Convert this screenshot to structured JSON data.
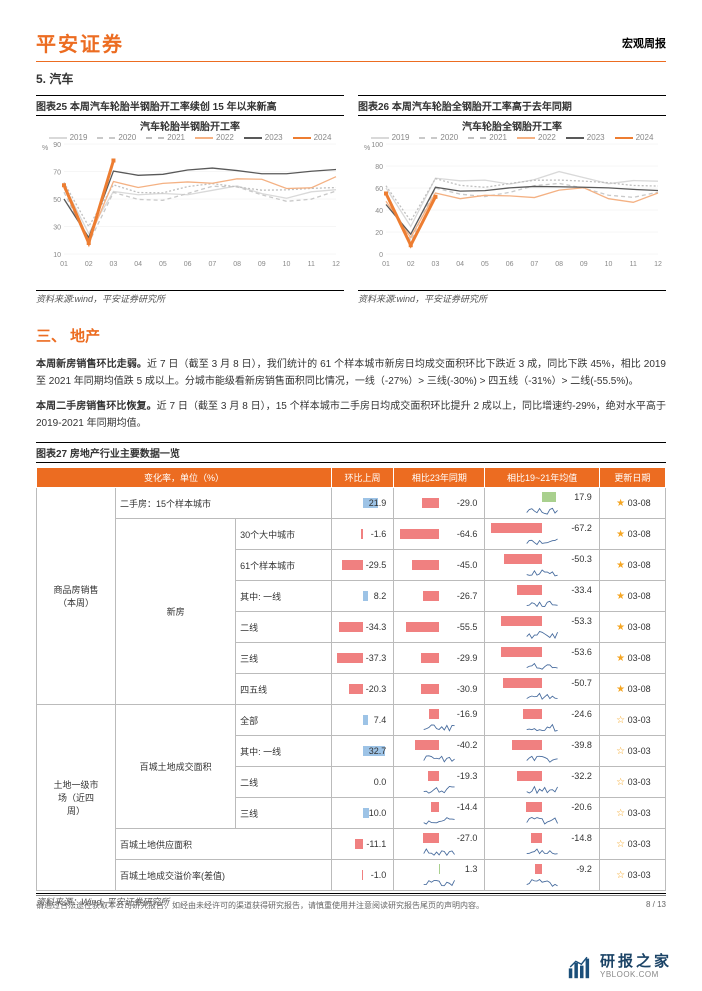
{
  "header": {
    "brand": "平安证券",
    "doc_type": "宏观周报"
  },
  "section5": {
    "title": "5. 汽车",
    "chart25": {
      "title": "图表25   本周汽车轮胎半钢胎开工率续创 15 年以来新高",
      "inner_title": "汽车轮胎半钢胎开工率",
      "y_unit": "%",
      "ylim": [
        10,
        90
      ],
      "yticks": [
        10,
        30,
        50,
        70,
        90
      ],
      "x_labels": [
        "01",
        "02",
        "03",
        "04",
        "05",
        "06",
        "07",
        "08",
        "09",
        "10",
        "11",
        "12"
      ],
      "series": [
        {
          "name": "2019",
          "color": "#d9d9d9",
          "dash": "0"
        },
        {
          "name": "2020",
          "color": "#c9c9c9",
          "dash": "4 3"
        },
        {
          "name": "2021",
          "color": "#bfbfbf",
          "dash": "2 2"
        },
        {
          "name": "2022",
          "color": "#f4b183",
          "dash": "0"
        },
        {
          "name": "2023",
          "color": "#595959",
          "dash": "0"
        },
        {
          "name": "2024",
          "color": "#ed7d31",
          "dash": "0",
          "width": 3,
          "marker": true
        }
      ],
      "source": "资料来源:wind，平安证券研究所"
    },
    "chart26": {
      "title": "图表26   本周汽车轮胎全钢胎开工率高于去年同期",
      "inner_title": "汽车轮胎全钢胎开工率",
      "y_unit": "%",
      "ylim": [
        0,
        100
      ],
      "yticks": [
        0,
        20,
        40,
        60,
        80,
        100
      ],
      "x_labels": [
        "01",
        "02",
        "03",
        "04",
        "05",
        "06",
        "07",
        "08",
        "09",
        "10",
        "11",
        "12"
      ],
      "series": [
        {
          "name": "2019",
          "color": "#d9d9d9",
          "dash": "0"
        },
        {
          "name": "2020",
          "color": "#c9c9c9",
          "dash": "4 3"
        },
        {
          "name": "2021",
          "color": "#bfbfbf",
          "dash": "2 2"
        },
        {
          "name": "2022",
          "color": "#f4b183",
          "dash": "0"
        },
        {
          "name": "2023",
          "color": "#595959",
          "dash": "0"
        },
        {
          "name": "2024",
          "color": "#ed7d31",
          "dash": "0",
          "width": 3,
          "marker": true
        }
      ],
      "source": "资料来源:wind，平安证券研究所"
    }
  },
  "section3": {
    "title": "三、 地产",
    "p1_bold": "本周新房销售环比走弱。",
    "p1": "近 7 日（截至 3 月 8 日），我们统计的 61 个样本城市新房日均成交面积环比下跌近 3 成，同比下跌 45%，相比 2019 至 2021 年同期均值跌 5 成以上。分城市能级看新房销售面积同比情况，一线（-27%）> 三线(-30%) > 四五线（-31%）> 二线(-55.5%)。",
    "p2_bold": "本周二手房销售环比恢复。",
    "p2": "近 7 日（截至 3 月 8 日），15 个样本城市二手房日均成交面积环比提升 2 成以上，同比增速约-29%，绝对水平高于 2019-2021 年同期均值。"
  },
  "table27": {
    "title": "图表27   房地产行业主要数据一览",
    "columns": [
      "变化率，单位（%）",
      "环比上周",
      "相比23年同期",
      "相比19~21年均值",
      "更新日期"
    ],
    "col_colors": {
      "c1_pos": "#9dc3e6",
      "c1_neg": "#f08080",
      "c2_pos": "#a9d08e",
      "c2_neg": "#f08080",
      "c3_pos": "#a9d08e",
      "c3_neg": "#f08080"
    },
    "groups": [
      {
        "group": "商品房销售（本周）",
        "sub": "二手房：15个样本城市",
        "rows": [
          {
            "label": "",
            "c1": 21.9,
            "c2": -29.0,
            "c3": 17.9,
            "date": "03-08",
            "star": 1
          }
        ]
      },
      {
        "group": "",
        "sub": "新房",
        "rows": [
          {
            "label": "30个大中城市",
            "c1": -1.6,
            "c2": -64.6,
            "c3": -67.2,
            "date": "03-08",
            "star": 1
          },
          {
            "label": "61个样本城市",
            "c1": -29.5,
            "c2": -45.0,
            "c3": -50.3,
            "date": "03-08",
            "star": 1
          },
          {
            "label": "其中: 一线",
            "c1": 8.2,
            "c2": -26.7,
            "c3": -33.4,
            "date": "03-08",
            "star": 1
          },
          {
            "label": "二线",
            "c1": -34.3,
            "c2": -55.5,
            "c3": -53.3,
            "date": "03-08",
            "star": 1
          },
          {
            "label": "三线",
            "c1": -37.3,
            "c2": -29.9,
            "c3": -53.6,
            "date": "03-08",
            "star": 1
          },
          {
            "label": "四五线",
            "c1": -20.3,
            "c2": -30.9,
            "c3": -50.7,
            "date": "03-08",
            "star": 1
          }
        ]
      },
      {
        "group": "土地一级市场（近四周）",
        "sub": "百城土地成交面积",
        "rows": [
          {
            "label": "全部",
            "c1": 7.4,
            "c2": -16.9,
            "c3": -24.6,
            "date": "03-03",
            "star": 0
          },
          {
            "label": "其中: 一线",
            "c1": 32.7,
            "c2": -40.2,
            "c3": -39.8,
            "date": "03-03",
            "star": 0
          },
          {
            "label": "二线",
            "c1": 0.0,
            "c2": -19.3,
            "c3": -32.2,
            "date": "03-03",
            "star": 0
          },
          {
            "label": "三线",
            "c1": 10.0,
            "c2": -14.4,
            "c3": -20.6,
            "date": "03-03",
            "star": 0
          }
        ]
      },
      {
        "group": "",
        "sub": "百城土地供应面积",
        "rows": [
          {
            "label": "",
            "c1": -11.1,
            "c2": -27.0,
            "c3": -14.8,
            "date": "03-03",
            "star": 0
          }
        ]
      },
      {
        "group": "",
        "sub": "百城土地成交溢价率(差值)",
        "rows": [
          {
            "label": "",
            "c1": -1.0,
            "c2": 1.3,
            "c3": -9.2,
            "date": "03-03",
            "star": 0
          }
        ]
      }
    ],
    "source": "资料来源：Wind, 平安证券研究所"
  },
  "footer": {
    "disclaimer": "请通过合法途径获取本公司研究报告，如经由未经许可的渠道获得研究报告，请慎重使用并注意阅读研究报告尾页的声明内容。",
    "page": "8 / 13"
  },
  "watermark": {
    "cn": "研报之家",
    "en": "YBLOOK.COM",
    "icon_color": "#1b4f7a"
  }
}
